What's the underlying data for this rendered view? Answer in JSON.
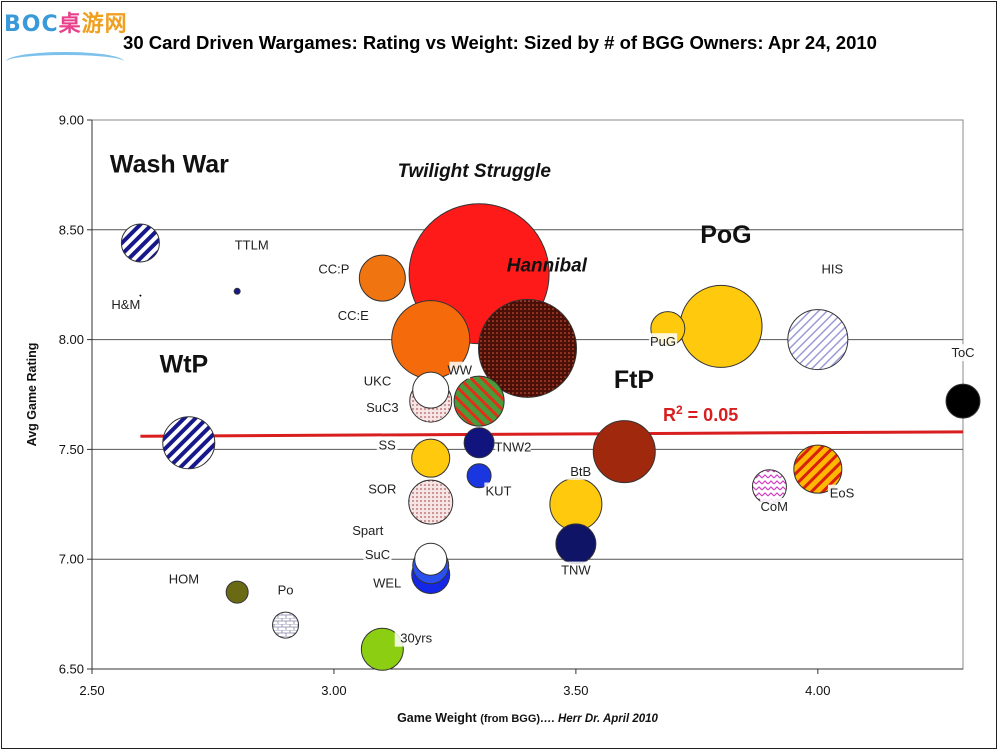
{
  "logo": {
    "part1": "BOC",
    "part2": "桌",
    "part3": "游网"
  },
  "chart_data": {
    "type": "scatter",
    "title": "30 Card Driven Wargames: Rating vs Weight: Sized by # of BGG Owners: Apr 24, 2010",
    "xlabel_main": "Game Weight ",
    "xlabel_small": "(from BGG)",
    "xlabel_credit": "…. Herr Dr. April 2010",
    "ylabel": "Avg Game Rating",
    "xlim": [
      2.5,
      4.3
    ],
    "ylim": [
      6.5,
      9.0
    ],
    "x_ticks": [
      2.5,
      3.0,
      3.5,
      4.0
    ],
    "x_tick_labels": [
      "2.50",
      "3.00",
      "3.50",
      "4.00"
    ],
    "y_ticks": [
      6.5,
      7.0,
      7.5,
      8.0,
      8.5,
      9.0
    ],
    "y_tick_labels": [
      "6.50",
      "7.00",
      "7.50",
      "8.00",
      "8.50",
      "9.00"
    ],
    "grid": "horizontal at 7.00, 7.50, 8.00, 8.50",
    "trendline": {
      "x": [
        2.6,
        4.3
      ],
      "y": [
        7.56,
        7.58
      ],
      "color": "#d81e1e",
      "label_base": "R",
      "label_sup": "2",
      "label_rest": " = 0.05"
    },
    "points": [
      {
        "label": "Twilight Struggle",
        "x": 3.3,
        "y": 8.3,
        "size": 70,
        "fill": "#ff1a1a",
        "pattern": "solid"
      },
      {
        "label": "Hannibal",
        "x": 3.4,
        "y": 7.96,
        "size": 49,
        "fill": "#4a0f06",
        "pattern": "dots"
      },
      {
        "label": "PoG",
        "x": 3.8,
        "y": 8.06,
        "size": 41,
        "fill": "#ffc90e",
        "pattern": "solid"
      },
      {
        "label": "HIS",
        "x": 4.0,
        "y": 8.0,
        "size": 30,
        "fill": "#d8d8f0",
        "pattern": "hatch-light"
      },
      {
        "label": "CC:E",
        "x": 3.2,
        "y": 8.0,
        "size": 39,
        "fill": "#f56a0a",
        "pattern": "solid"
      },
      {
        "label": "CC:P",
        "x": 3.1,
        "y": 8.28,
        "size": 23,
        "fill": "#f07410",
        "pattern": "solid"
      },
      {
        "label": "PuG",
        "x": 3.69,
        "y": 8.05,
        "size": 17,
        "fill": "#ffc90e",
        "pattern": "solid"
      },
      {
        "label": "Wash War",
        "x": 2.6,
        "y": 8.44,
        "size": 19,
        "fill": "#16188c",
        "pattern": "hatch-blue"
      },
      {
        "label": "TTLM",
        "x": 2.8,
        "y": 8.22,
        "size": 3,
        "fill": "#16188c",
        "pattern": "solid"
      },
      {
        "label": "H&M",
        "x": 2.6,
        "y": 8.2,
        "size": 1,
        "fill": "#000000",
        "pattern": "solid"
      },
      {
        "label": "WtP",
        "x": 2.7,
        "y": 7.53,
        "size": 26,
        "fill": "#16188c",
        "pattern": "hatch-blue"
      },
      {
        "label": "ToC",
        "x": 4.3,
        "y": 7.72,
        "size": 17,
        "fill": "#000000",
        "pattern": "solid"
      },
      {
        "label": "UKC",
        "x": 3.2,
        "y": 7.77,
        "size": 18,
        "fill": "#ffffff",
        "pattern": "solid"
      },
      {
        "label": "SuC3",
        "x": 3.2,
        "y": 7.72,
        "size": 21,
        "fill": "#fff4ec",
        "pattern": "dots-light"
      },
      {
        "label": "WW",
        "x": 3.3,
        "y": 7.72,
        "size": 25,
        "fill": "#4a9a3c",
        "pattern": "diag-red"
      },
      {
        "label": "TNW2",
        "x": 3.3,
        "y": 7.53,
        "size": 15,
        "fill": "#12147e",
        "pattern": "solid"
      },
      {
        "label": "FtP",
        "x": 3.6,
        "y": 7.49,
        "size": 31,
        "fill": "#a0280c",
        "pattern": "solid"
      },
      {
        "label": "SS",
        "x": 3.2,
        "y": 7.46,
        "size": 19,
        "fill": "#ffc90e",
        "pattern": "solid"
      },
      {
        "label": "KUT",
        "x": 3.3,
        "y": 7.38,
        "size": 12,
        "fill": "#1a36e0",
        "pattern": "solid"
      },
      {
        "label": "SOR",
        "x": 3.2,
        "y": 7.26,
        "size": 22,
        "fill": "#e6c0c0",
        "pattern": "dots-light"
      },
      {
        "label": "BtB",
        "x": 3.5,
        "y": 7.25,
        "size": 26,
        "fill": "#ffc90e",
        "pattern": "solid"
      },
      {
        "label": "EoS",
        "x": 4.0,
        "y": 7.41,
        "size": 24,
        "fill": "#ffb700",
        "pattern": "hatch-red"
      },
      {
        "label": "CoM",
        "x": 3.9,
        "y": 7.33,
        "size": 17,
        "fill": "#ffffff",
        "pattern": "zigzag"
      },
      {
        "label": "TNW",
        "x": 3.5,
        "y": 7.07,
        "size": 20,
        "fill": "#101466",
        "pattern": "solid"
      },
      {
        "label": "Spart",
        "x": 3.2,
        "y": 7.0,
        "size": 16,
        "fill": "#ffffff",
        "pattern": "solid"
      },
      {
        "label": "SuC",
        "x": 3.2,
        "y": 6.97,
        "size": 18,
        "fill": "#2a50f0",
        "pattern": "solid"
      },
      {
        "label": "WEL",
        "x": 3.2,
        "y": 6.93,
        "size": 19,
        "fill": "#1426e8",
        "pattern": "solid"
      },
      {
        "label": "HOM",
        "x": 2.8,
        "y": 6.85,
        "size": 11,
        "fill": "#6a6a14",
        "pattern": "solid"
      },
      {
        "label": "Po",
        "x": 2.9,
        "y": 6.7,
        "size": 13,
        "fill": "#f4f4f4",
        "pattern": "bricks"
      },
      {
        "label": "30yrs",
        "x": 3.1,
        "y": 6.59,
        "size": 21,
        "fill": "#8ccf12",
        "pattern": "solid"
      }
    ],
    "labels": [
      {
        "text": "Wash War",
        "style": "big",
        "x": 2.66,
        "y": 8.76
      },
      {
        "text": "Twilight Struggle",
        "style": "italic",
        "x": 3.29,
        "y": 8.74
      },
      {
        "text": "Hannibal",
        "style": "italic",
        "x": 3.44,
        "y": 8.31
      },
      {
        "text": "PoG",
        "style": "big",
        "x": 3.81,
        "y": 8.44
      },
      {
        "text": "WtP",
        "style": "big",
        "x": 2.69,
        "y": 7.85
      },
      {
        "text": "FtP",
        "style": "big",
        "x": 3.62,
        "y": 7.78
      },
      {
        "text": "TTLM",
        "x": 2.83,
        "y": 8.41
      },
      {
        "text": "H&M",
        "x": 2.57,
        "y": 8.14
      },
      {
        "text": "CC:P",
        "x": 3.0,
        "y": 8.3
      },
      {
        "text": "CC:E",
        "x": 3.04,
        "y": 8.09
      },
      {
        "text": "HIS",
        "x": 4.03,
        "y": 8.3
      },
      {
        "text": "PuG",
        "x": 3.68,
        "y": 7.97
      },
      {
        "text": "ToC",
        "x": 4.3,
        "y": 7.92
      },
      {
        "text": "UKC",
        "x": 3.09,
        "y": 7.79
      },
      {
        "text": "SuC3",
        "x": 3.1,
        "y": 7.67
      },
      {
        "text": "WW",
        "x": 3.26,
        "y": 7.84
      },
      {
        "text": "SS",
        "x": 3.11,
        "y": 7.5
      },
      {
        "text": "TNW2",
        "x": 3.37,
        "y": 7.49
      },
      {
        "text": "BtB",
        "x": 3.51,
        "y": 7.38
      },
      {
        "text": "SOR",
        "x": 3.1,
        "y": 7.3
      },
      {
        "text": "KUT",
        "x": 3.34,
        "y": 7.29
      },
      {
        "text": "EoS",
        "x": 4.05,
        "y": 7.28
      },
      {
        "text": "CoM",
        "x": 3.91,
        "y": 7.22
      },
      {
        "text": "Spart",
        "x": 3.07,
        "y": 7.11
      },
      {
        "text": "SuC",
        "x": 3.09,
        "y": 7.0
      },
      {
        "text": "TNW",
        "x": 3.5,
        "y": 6.93
      },
      {
        "text": "HOM",
        "x": 2.69,
        "y": 6.89
      },
      {
        "text": "WEL",
        "x": 3.11,
        "y": 6.87
      },
      {
        "text": "Po",
        "x": 2.9,
        "y": 6.84
      },
      {
        "text": "30yrs",
        "x": 3.17,
        "y": 6.62
      }
    ]
  }
}
